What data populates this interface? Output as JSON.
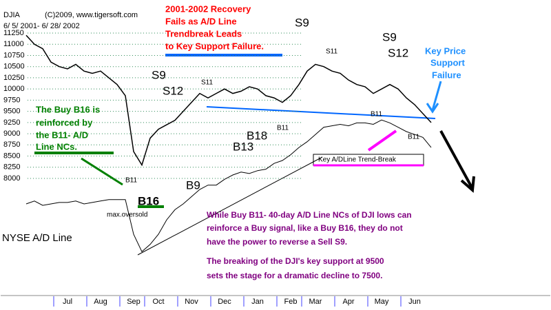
{
  "chart_data": {
    "type": "line",
    "title": "DJIA",
    "categories": [
      null,
      null,
      null,
      null,
      null,
      "Jul",
      null,
      null,
      null,
      "Aug",
      null,
      null,
      null,
      "Sep",
      null,
      null,
      "Oct",
      null,
      null,
      null,
      "Nov",
      null,
      null,
      null,
      "Dec",
      null,
      null,
      null,
      "Jan",
      null,
      null,
      null,
      "Feb",
      null,
      null,
      "Mar",
      null,
      null,
      null,
      "Apr",
      null,
      null,
      null,
      "May",
      null,
      null,
      null,
      "Jun",
      null,
      null
    ],
    "series": [
      {
        "name": "DJIA",
        "color": "#000000",
        "values": [
          11200,
          11000,
          10900,
          10600,
          10500,
          10450,
          10550,
          10400,
          10350,
          10400,
          10250,
          10100,
          9850,
          8600,
          8300,
          8900,
          9100,
          9200,
          9300,
          9500,
          9700,
          9900,
          9800,
          9900,
          10000,
          9900,
          9950,
          10050,
          10000,
          9850,
          9800,
          9700,
          9850,
          10100,
          10400,
          10550,
          10500,
          10400,
          10350,
          10200,
          10100,
          10050,
          9900,
          10000,
          10100,
          10000,
          9800,
          9650,
          9450,
          9250
        ]
      },
      {
        "name": "NYSE A/D Line",
        "color": "#000000",
        "axis": "y2",
        "values": [
          40,
          42,
          39,
          40,
          41,
          41,
          42,
          40,
          41,
          42,
          43,
          43,
          43,
          19,
          7,
          12,
          19,
          29,
          36,
          40,
          45,
          50,
          53,
          53,
          57,
          60,
          62,
          61,
          63,
          64,
          68,
          70,
          74,
          79,
          83,
          88,
          93,
          94,
          95,
          94,
          96,
          96,
          95,
          98,
          96,
          93,
          90,
          88,
          86,
          79
        ]
      }
    ],
    "ylim": [
      8000,
      11250
    ],
    "yticks": [
      8000,
      8250,
      8500,
      8750,
      9000,
      9250,
      9500,
      9750,
      10000,
      10250,
      10500,
      10750,
      11000,
      11250
    ],
    "y2lim": [
      0,
      100
    ],
    "grid": true,
    "grid_color": "#2e8b57",
    "annotations": [
      "(C)2009, www.tigersoft.com",
      "6/ 5/ 2001- 6/ 28/ 2002",
      "2001-2002 Recovery",
      "Fails as A/D Line",
      "Trendbreak Leads",
      "to Key Support Failure.",
      "S9",
      "S9",
      "S12",
      "S11",
      "S9",
      "S12",
      "S11",
      "Key Price",
      "Support",
      "Failure",
      "The Buy B16 is",
      "reinforced by",
      "the B11- A/D",
      "Line NCs.",
      "B18",
      "B11",
      "B13",
      "B11",
      "B11",
      "Key A/DLine Trend-Break",
      "B11",
      "B9",
      "B16",
      "max.oversold",
      "While Buy B11- 40-day A/D Line NCs of DJI lows can",
      "reinforce a Buy signal, like a Buy B16, they do not",
      "have the power to reverse a Sell S9.",
      "The breaking of the DJI's key support at 9500",
      "sets the stage for a dramatic decline to 7500."
    ]
  }
}
